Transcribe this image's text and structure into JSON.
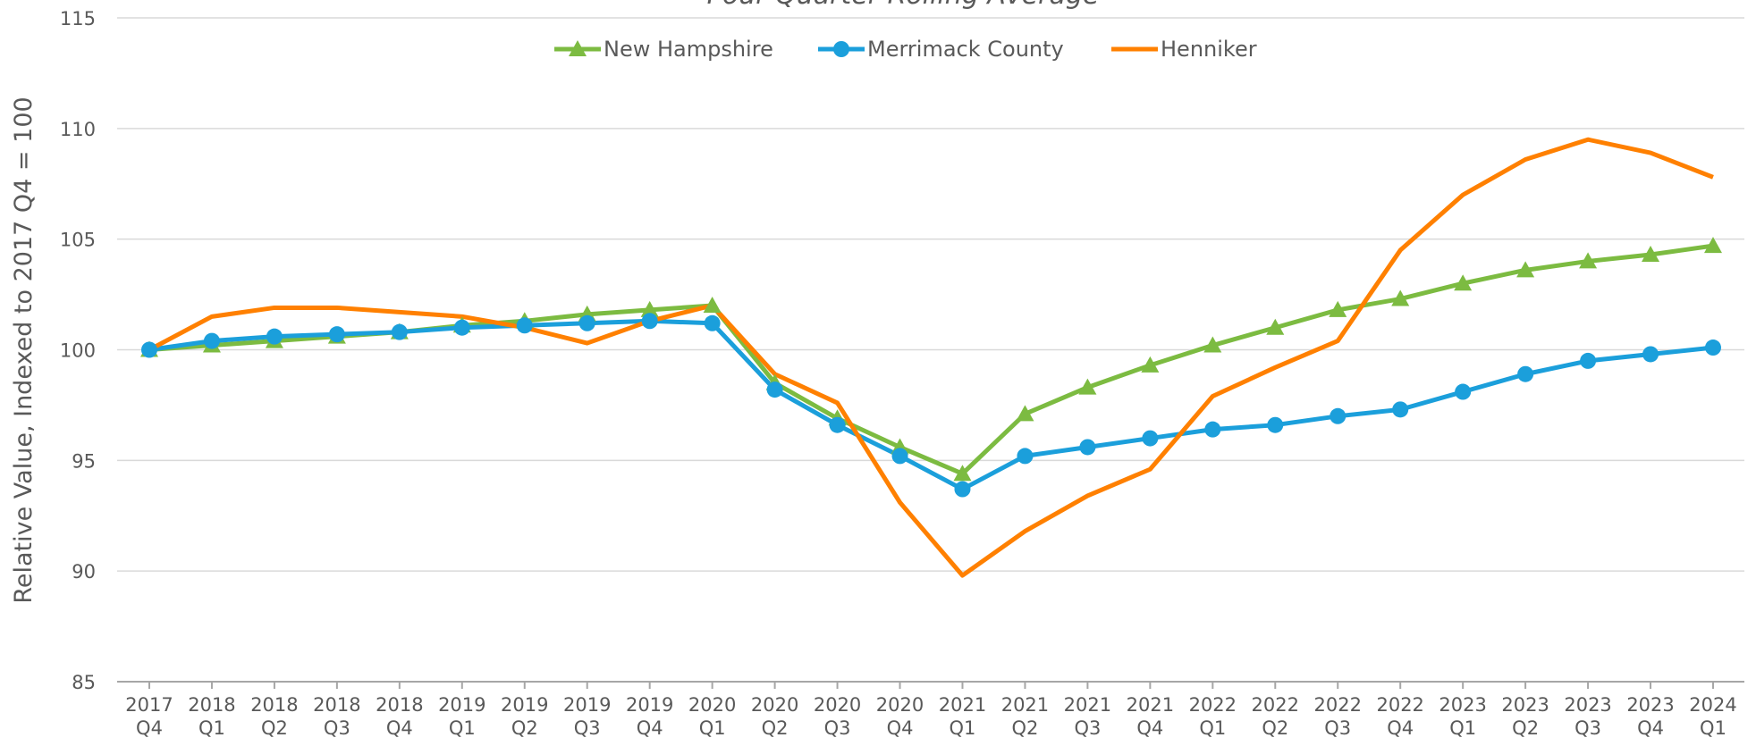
{
  "chart_data": {
    "type": "line",
    "subtitle": "Four Quarter Rolling Average",
    "y_label": "Relative Value, Indexed to 2017 Q4 = 100",
    "categories": [
      "2017 Q4",
      "2018 Q1",
      "2018 Q2",
      "2018 Q3",
      "2018 Q4",
      "2019 Q1",
      "2019 Q2",
      "2019 Q3",
      "2019 Q4",
      "2020 Q1",
      "2020 Q2",
      "2020 Q3",
      "2020 Q4",
      "2021 Q1",
      "2021 Q2",
      "2021 Q3",
      "2021 Q4",
      "2022 Q1",
      "2022 Q2",
      "2022 Q3",
      "2022 Q4",
      "2023 Q1",
      "2023 Q2",
      "2023 Q3",
      "2023 Q4",
      "2024 Q1"
    ],
    "series": [
      {
        "name": "New Hampshire",
        "color": "#7cbb41",
        "marker": "triangle",
        "values": [
          100,
          100.2,
          100.4,
          100.6,
          100.8,
          101.1,
          101.3,
          101.6,
          101.8,
          102.0,
          98.5,
          96.9,
          95.6,
          94.4,
          97.1,
          98.3,
          99.3,
          100.2,
          101.0,
          101.8,
          102.3,
          103.0,
          103.6,
          104.0,
          104.3,
          104.7
        ]
      },
      {
        "name": "Merrimack County",
        "color": "#1b9fdb",
        "marker": "circle",
        "values": [
          100,
          100.4,
          100.6,
          100.7,
          100.8,
          101.0,
          101.1,
          101.2,
          101.3,
          101.2,
          98.2,
          96.6,
          95.2,
          93.7,
          95.2,
          95.6,
          96.0,
          96.4,
          96.6,
          97.0,
          97.3,
          98.1,
          98.9,
          99.5,
          99.8,
          100.1
        ]
      },
      {
        "name": "Henniker",
        "color": "#ff8000",
        "values": [
          100,
          101.5,
          101.9,
          101.9,
          101.7,
          101.5,
          101.0,
          100.3,
          101.3,
          102.0,
          98.9,
          97.6,
          93.1,
          89.8,
          91.8,
          93.4,
          94.6,
          97.9,
          99.2,
          100.4,
          104.5,
          107.0,
          108.6,
          109.5,
          108.9,
          107.8
        ]
      }
    ],
    "ylim": [
      85,
      115
    ],
    "yticks": [
      85,
      90,
      95,
      100,
      105,
      110,
      115
    ],
    "grid": true,
    "legend": "top"
  }
}
